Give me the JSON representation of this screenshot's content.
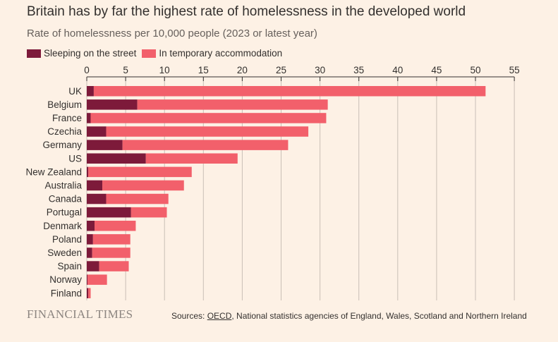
{
  "header": {
    "title": "Britain has by far the highest rate of homelessness in the developed world",
    "subtitle": "Rate of homelessness per 10,000 people (2023 or latest year)"
  },
  "footer": {
    "logo": "FINANCIAL TIMES",
    "source_prefix": "Sources: ",
    "source_link": "OECD",
    "source_rest": ", National statistics agencies of England, Wales, Scotland and Northern Ireland"
  },
  "colors": {
    "background": "#fdf1e5",
    "street": "#7d1a3a",
    "temporary": "#f2606b",
    "axis": "#33302e",
    "grid": "#c9bfb6"
  },
  "chart_data": {
    "type": "bar",
    "orientation": "horizontal",
    "stacked": true,
    "title": "Britain has by far the highest rate of homelessness in the developed world",
    "subtitle": "Rate of homelessness per 10,000 people (2023 or latest year)",
    "xlim": [
      0,
      55
    ],
    "xticks": [
      "0",
      "5",
      "10",
      "15",
      "20",
      "25",
      "30",
      "35",
      "40",
      "45",
      "50",
      "55"
    ],
    "legend_position": "top-left",
    "grid": true,
    "categories": [
      "UK",
      "Belgium",
      "France",
      "Czechia",
      "Germany",
      "US",
      "New Zealand",
      "Australia",
      "Canada",
      "Portugal",
      "Denmark",
      "Poland",
      "Sweden",
      "Spain",
      "Norway",
      "Finland"
    ],
    "series": [
      {
        "name": "Sleeping on the street",
        "color": "#7d1a3a",
        "values": [
          0.9,
          6.5,
          0.5,
          2.5,
          4.6,
          7.6,
          0.2,
          2.0,
          2.5,
          5.7,
          1.0,
          0.8,
          0.7,
          1.6,
          0.1,
          0.2
        ]
      },
      {
        "name": "In temporary accommodation",
        "color": "#f2606b",
        "values": [
          50.4,
          24.5,
          30.3,
          26.0,
          21.3,
          11.8,
          13.3,
          10.5,
          8.0,
          4.6,
          5.3,
          4.8,
          4.9,
          3.8,
          2.5,
          0.3
        ]
      }
    ]
  }
}
